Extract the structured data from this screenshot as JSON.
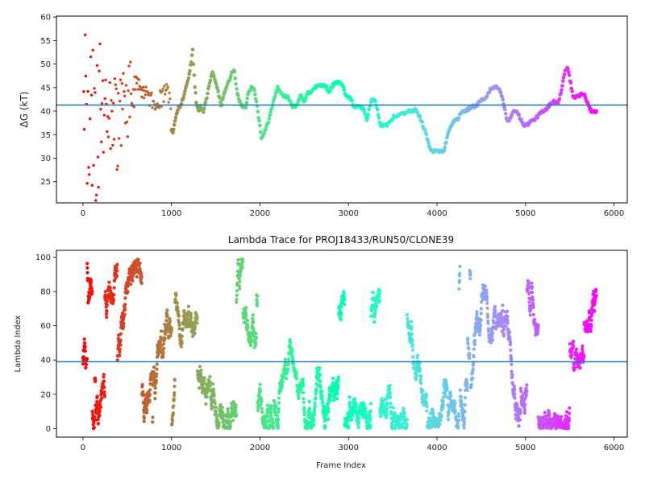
{
  "chart_data": [
    {
      "type": "scatter",
      "title": "",
      "xlabel": "",
      "ylabel": "ΔG (kT)",
      "xlim": [
        -300,
        6150
      ],
      "ylim": [
        20.5,
        60.2
      ],
      "x_ticks": [
        0,
        1000,
        2000,
        3000,
        4000,
        5000,
        6000
      ],
      "y_ticks": [
        25,
        30,
        35,
        40,
        45,
        50,
        55,
        60
      ],
      "hline": 41.3,
      "colormap": "rainbow (color by frame index, red at start to purple at end)",
      "profile": [
        [
          0,
          38
        ],
        [
          50,
          40
        ],
        [
          100,
          38
        ],
        [
          150,
          37
        ],
        [
          200,
          39
        ],
        [
          250,
          40
        ],
        [
          300,
          38
        ],
        [
          350,
          37
        ],
        [
          400,
          36
        ],
        [
          450,
          40
        ],
        [
          500,
          42
        ],
        [
          550,
          44
        ],
        [
          600,
          46
        ],
        [
          650,
          45
        ],
        [
          700,
          44
        ],
        [
          750,
          43
        ],
        [
          800,
          42
        ],
        [
          850,
          42.5
        ],
        [
          900,
          43
        ],
        [
          950,
          44
        ],
        [
          980,
          43
        ],
        [
          1000,
          36
        ],
        [
          1020,
          35.5
        ],
        [
          1050,
          39
        ],
        [
          1080,
          41
        ],
        [
          1100,
          41
        ],
        [
          1150,
          44
        ],
        [
          1180,
          46
        ],
        [
          1200,
          48
        ],
        [
          1220,
          50
        ],
        [
          1240,
          53
        ],
        [
          1260,
          46
        ],
        [
          1280,
          42
        ],
        [
          1300,
          40
        ],
        [
          1330,
          41
        ],
        [
          1360,
          40
        ],
        [
          1400,
          43
        ],
        [
          1430,
          46
        ],
        [
          1460,
          48.5
        ],
        [
          1500,
          46
        ],
        [
          1530,
          44
        ],
        [
          1560,
          41
        ],
        [
          1600,
          44
        ],
        [
          1640,
          46
        ],
        [
          1680,
          48
        ],
        [
          1710,
          48.5
        ],
        [
          1740,
          44
        ],
        [
          1770,
          42
        ],
        [
          1800,
          41
        ],
        [
          1840,
          41
        ],
        [
          1870,
          44
        ],
        [
          1900,
          45
        ],
        [
          1930,
          45
        ],
        [
          1960,
          42
        ],
        [
          1990,
          38
        ],
        [
          2020,
          34
        ],
        [
          2060,
          36
        ],
        [
          2100,
          38
        ],
        [
          2150,
          42
        ],
        [
          2200,
          45
        ],
        [
          2240,
          44
        ],
        [
          2280,
          43
        ],
        [
          2320,
          43
        ],
        [
          2360,
          41
        ],
        [
          2400,
          41
        ],
        [
          2430,
          42
        ],
        [
          2460,
          43.5
        ],
        [
          2500,
          42
        ],
        [
          2540,
          44
        ],
        [
          2580,
          44
        ],
        [
          2620,
          45
        ],
        [
          2660,
          45.5
        ],
        [
          2700,
          45.5
        ],
        [
          2740,
          45.5
        ],
        [
          2780,
          44
        ],
        [
          2820,
          45.5
        ],
        [
          2860,
          46
        ],
        [
          2900,
          46
        ],
        [
          2940,
          45
        ],
        [
          2980,
          43
        ],
        [
          3020,
          43
        ],
        [
          3060,
          41
        ],
        [
          3100,
          41
        ],
        [
          3140,
          41
        ],
        [
          3180,
          40
        ],
        [
          3210,
          38
        ],
        [
          3240,
          41
        ],
        [
          3270,
          42.5
        ],
        [
          3300,
          42.5
        ],
        [
          3330,
          40
        ],
        [
          3360,
          37
        ],
        [
          3400,
          37
        ],
        [
          3440,
          37
        ],
        [
          3480,
          38
        ],
        [
          3520,
          39
        ],
        [
          3560,
          39
        ],
        [
          3600,
          39.5
        ],
        [
          3640,
          39.5
        ],
        [
          3680,
          40
        ],
        [
          3720,
          40
        ],
        [
          3760,
          40.5
        ],
        [
          3800,
          39
        ],
        [
          3840,
          37
        ],
        [
          3880,
          35
        ],
        [
          3920,
          32
        ],
        [
          3960,
          31.5
        ],
        [
          4000,
          31.5
        ],
        [
          4040,
          31.5
        ],
        [
          4080,
          31.5
        ],
        [
          4120,
          35
        ],
        [
          4160,
          37
        ],
        [
          4200,
          38
        ],
        [
          4240,
          38.5
        ],
        [
          4280,
          40
        ],
        [
          4320,
          40
        ],
        [
          4360,
          40.5
        ],
        [
          4400,
          41
        ],
        [
          4440,
          41
        ],
        [
          4480,
          42
        ],
        [
          4520,
          42.5
        ],
        [
          4560,
          43
        ],
        [
          4600,
          44.5
        ],
        [
          4640,
          45
        ],
        [
          4680,
          45
        ],
        [
          4720,
          44
        ],
        [
          4760,
          41
        ],
        [
          4790,
          38
        ],
        [
          4820,
          38
        ],
        [
          4860,
          40
        ],
        [
          4900,
          40
        ],
        [
          4940,
          38.5
        ],
        [
          4980,
          37
        ],
        [
          5020,
          37
        ],
        [
          5060,
          38
        ],
        [
          5100,
          38
        ],
        [
          5140,
          39
        ],
        [
          5180,
          40
        ],
        [
          5220,
          40
        ],
        [
          5260,
          41
        ],
        [
          5300,
          42
        ],
        [
          5340,
          42
        ],
        [
          5380,
          42
        ],
        [
          5420,
          46
        ],
        [
          5450,
          49
        ],
        [
          5480,
          49.2
        ],
        [
          5510,
          46
        ],
        [
          5540,
          43
        ],
        [
          5580,
          43
        ],
        [
          5620,
          43.5
        ],
        [
          5660,
          43.5
        ],
        [
          5700,
          42
        ],
        [
          5740,
          40
        ],
        [
          5790,
          40
        ]
      ]
    },
    {
      "type": "scatter",
      "title": "Lambda Trace for PROJ18433/RUN50/CLONE39",
      "xlabel": "Frame Index",
      "ylabel": "Lambda Index",
      "xlim": [
        -300,
        6150
      ],
      "ylim": [
        -5,
        104
      ],
      "x_ticks": [
        0,
        1000,
        2000,
        3000,
        4000,
        5000,
        6000
      ],
      "y_ticks": [
        0,
        20,
        40,
        60,
        80,
        100
      ],
      "hline": 39,
      "colormap": "rainbow (color by frame index, red at start to purple at end)",
      "frame_range": [
        0,
        5800
      ],
      "lambda_range": [
        0,
        99
      ]
    }
  ]
}
